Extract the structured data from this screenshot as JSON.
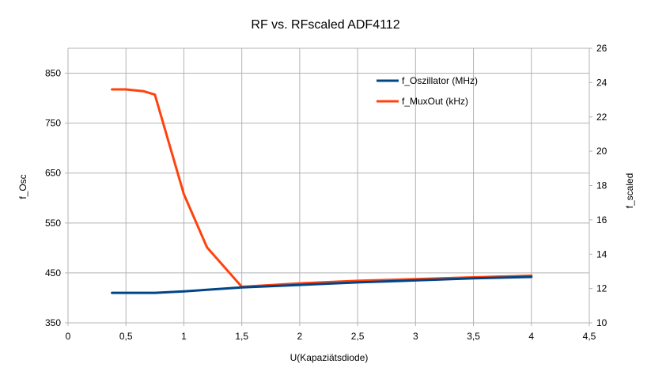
{
  "chart_data": {
    "type": "line",
    "title": "RF vs. RFscaled ADF4112",
    "xlabel": "U(Kapaziätsdiode)",
    "ylabel_left": "f_Osc",
    "ylabel_right": "f_scaled",
    "xlim": [
      0,
      4.5
    ],
    "ylim_left": [
      350,
      900
    ],
    "ylim_right": [
      10,
      26
    ],
    "x_ticks": [
      "0",
      "0,5",
      "1",
      "1,5",
      "2",
      "2,5",
      "3",
      "3,5",
      "4",
      "4,5"
    ],
    "y_left_ticks": [
      "350",
      "450",
      "550",
      "650",
      "750",
      "850"
    ],
    "y_right_ticks": [
      "10",
      "12",
      "14",
      "16",
      "18",
      "20",
      "22",
      "24",
      "26"
    ],
    "grid": true,
    "legend_position": "top-right",
    "series": [
      {
        "name": "f_Oszillator (MHz)",
        "axis": "left",
        "color": "#004586",
        "x": [
          0.38,
          0.5,
          0.65,
          0.75,
          1.0,
          1.5,
          2.0,
          2.5,
          3.0,
          3.5,
          4.0
        ],
        "values": [
          410,
          410,
          410,
          410,
          413,
          421,
          426,
          431,
          435,
          439,
          442
        ]
      },
      {
        "name": "f_MuxOut (kHz)",
        "axis": "right",
        "color": "#ff420e",
        "x": [
          0.38,
          0.5,
          0.65,
          0.75,
          1.0,
          1.2,
          1.5,
          2.0,
          2.5,
          3.0,
          3.5,
          4.0
        ],
        "values": [
          23.6,
          23.6,
          23.5,
          23.3,
          17.5,
          14.4,
          12.1,
          12.3,
          12.45,
          12.55,
          12.65,
          12.75
        ]
      }
    ]
  }
}
